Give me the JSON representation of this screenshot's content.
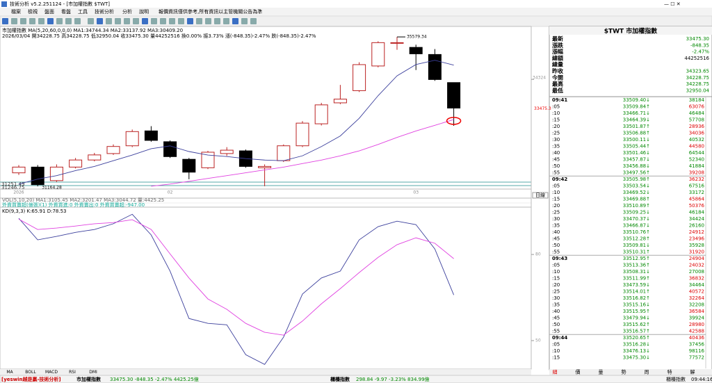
{
  "window": {
    "title": "技術分析 v5.2.251124 - [市加權指數 $TWT]",
    "menu": [
      "檔案",
      "檢視",
      "盤面",
      "看盤",
      "工具",
      "技術分析",
      "分析",
      "說明"
    ],
    "notice": "報價資訊僅供參考,所有資訊以主管機關公告為準"
  },
  "info": {
    "line1": "市加權指數 MA(5,20,60,0,0,0) MA1:34744.34 MA2:33137.92 MA3:30409.20",
    "line2": "2026/03/04 開34228.75 高34228.75 低32950.04 收33475.30 量44252516 換0.00% 振3.73% 漲(-848.35)-2.47% 跌(-848.35)-2.47%",
    "vol": "VOL(5,10,20) MA1:3105.45 MA2:3201.47 MA3:3044.72 量:4425.25",
    "foreign": "外資買賣超(億張)(1) 外資買進:0 外資賣出:0 外資買賣超:-947.00",
    "left_labels": [
      "31251.49",
      "31246.75"
    ],
    "period": "日線"
  },
  "chart_data": [
    {
      "type": "candlestick",
      "x": [
        "2026",
        null,
        null,
        null,
        null,
        null,
        null,
        null,
        "02",
        null,
        null,
        null,
        null,
        null,
        null,
        null,
        null,
        null,
        null,
        null,
        null,
        "03",
        null,
        null
      ],
      "open": [
        31560,
        31730,
        31330,
        31730,
        31940,
        32130,
        32360,
        32800,
        32480,
        31960,
        31710,
        32130,
        32210,
        31710,
        31920,
        32360,
        33010,
        33630,
        33990,
        34720,
        35390,
        35270,
        35060,
        34228.75
      ],
      "high": [
        31790,
        31790,
        31810,
        32000,
        32150,
        32400,
        32840,
        32940,
        32520,
        32000,
        32210,
        32320,
        32250,
        31810,
        32400,
        33090,
        33630,
        34160,
        34830,
        35450,
        35579.34,
        35350,
        35220,
        34228.75
      ],
      "low": [
        31500,
        31160,
        31290,
        31690,
        31900,
        32090,
        32320,
        32480,
        32000,
        31370,
        31670,
        32060,
        31710,
        31164.28,
        31880,
        32320,
        32960,
        33590,
        33950,
        34680,
        35200,
        34600,
        34280,
        32950.04
      ],
      "close": [
        31730,
        31210,
        31730,
        31940,
        32090,
        32340,
        32780,
        32520,
        32040,
        31580,
        32170,
        32230,
        31750,
        31750,
        32360,
        33030,
        33570,
        33740,
        34760,
        35410,
        35410,
        35080,
        34320,
        33475.3
      ],
      "series": [
        {
          "name": "MA1",
          "color": "#3b3f9c",
          "values": [
            31227,
            31374,
            31478,
            31625,
            31750,
            31918,
            32085,
            32273,
            32357,
            32190,
            32085,
            32043,
            31980,
            31938,
            31918,
            32064,
            32336,
            32650,
            33173,
            33842,
            34428,
            34763,
            34888,
            34744.34
          ]
        },
        {
          "name": "MA2",
          "color": "#e040e0",
          "values": [
            null,
            null,
            null,
            null,
            null,
            null,
            null,
            31164,
            31227,
            31311,
            31395,
            31478,
            31562,
            31646,
            31729,
            31834,
            31938,
            32064,
            32210,
            32399,
            32608,
            32797,
            32964,
            33137.92
          ]
        }
      ],
      "annotations": [
        "35579.34",
        "31164.28"
      ],
      "ylim": [
        31080,
        35890
      ],
      "yticks": [
        34324
      ],
      "last_label": "33475.3"
    },
    {
      "type": "line",
      "title": "KD(9,3,3) K:65.91 D:78.53",
      "ylim": [
        40.8,
        96
      ],
      "yticks": [
        50,
        80
      ],
      "series": [
        {
          "name": "K",
          "color": "#3b3f9c",
          "values": [
            92.6,
            85.1,
            86.3,
            87.7,
            88.7,
            90.7,
            94,
            86.8,
            74.2,
            57.7,
            56,
            55.5,
            45.1,
            41.7,
            51.2,
            66.2,
            71.8,
            74.2,
            85.1,
            89.7,
            91.6,
            90.4,
            81.9,
            65.91
          ]
        },
        {
          "name": "D",
          "color": "#e040e0",
          "values": [
            92.3,
            88.7,
            89.2,
            89.9,
            90.7,
            91.1,
            92.1,
            88.7,
            80.2,
            71.8,
            64.5,
            60.9,
            56,
            52.9,
            51.9,
            56.8,
            62.8,
            68.1,
            73.7,
            79,
            83.4,
            85.8,
            83.9,
            78.53
          ]
        }
      ]
    }
  ],
  "indicator_tabs": [
    "MA",
    "BOLL",
    "MACD",
    "RSI",
    "DMI"
  ],
  "quote": {
    "header": "$TWT 市加權指數",
    "rows": [
      [
        "最新",
        "33475.30"
      ],
      [
        "漲跌",
        "-848.35"
      ],
      [
        "漲幅",
        "-2.47%"
      ],
      [
        "總額",
        "44252516"
      ],
      [
        "總量",
        ""
      ],
      [
        "昨收",
        "34323.65"
      ],
      [
        "今開",
        "34228.75"
      ],
      [
        "最高",
        "34228.75"
      ],
      [
        "最低",
        "32950.04"
      ]
    ]
  },
  "ticks": [
    [
      "09:41",
      "33509.40↓",
      "38184"
    ],
    [
      ":05",
      "33509.84↑",
      "63076"
    ],
    [
      ":10",
      "33466.71↓",
      "46484"
    ],
    [
      ":15",
      "33464.39↓",
      "57708"
    ],
    [
      ":20",
      "33501.87↑",
      "28936"
    ],
    [
      ":25",
      "33506.88↑",
      "34036"
    ],
    [
      ":30",
      "33500.11↓",
      "40532"
    ],
    [
      ":35",
      "33505.44↑",
      "44580"
    ],
    [
      ":40",
      "33501.46↓",
      "64544"
    ],
    [
      ":45",
      "33457.87↓",
      "52340"
    ],
    [
      ":50",
      "33456.88↓",
      "41884"
    ],
    [
      ":55",
      "33497.56↑",
      "39208"
    ],
    [
      "09:42",
      "33505.98↑",
      "36232"
    ],
    [
      ":05",
      "33503.54↓",
      "67516"
    ],
    [
      ":10",
      "33469.52↓",
      "33172"
    ],
    [
      ":15",
      "33469.88↑",
      "45864"
    ],
    [
      ":20",
      "33510.89↑",
      "50376"
    ],
    [
      ":25",
      "33509.25↓",
      "46184"
    ],
    [
      ":30",
      "33470.37↓",
      "34424"
    ],
    [
      ":35",
      "33466.87↓",
      "26160"
    ],
    [
      ":40",
      "33510.76↑",
      "24912"
    ],
    [
      ":45",
      "33512.28↑",
      "23496"
    ],
    [
      ":50",
      "33509.81↓",
      "35928"
    ],
    [
      ":55",
      "33510.31↑",
      "31920"
    ],
    [
      "09:43",
      "33512.95↑",
      "24904"
    ],
    [
      ":05",
      "33513.36↑",
      "24032"
    ],
    [
      ":10",
      "33508.31↓",
      "27008"
    ],
    [
      ":15",
      "33511.99↑",
      "36832"
    ],
    [
      ":20",
      "33473.59↓",
      "34464"
    ],
    [
      ":25",
      "33514.01↑",
      "40572"
    ],
    [
      ":30",
      "33516.82↑",
      "32264"
    ],
    [
      ":35",
      "33515.16↓",
      "32208"
    ],
    [
      ":40",
      "33515.95↑",
      "36584"
    ],
    [
      ":45",
      "33479.94↓",
      "39924"
    ],
    [
      ":50",
      "33515.62↑",
      "28980"
    ],
    [
      ":55",
      "33516.57↑",
      "42588"
    ],
    [
      "09:44",
      "33520.65↑",
      "40436"
    ],
    [
      ":05",
      "33516.28↓",
      "37456"
    ],
    [
      ":10",
      "33476.13↓",
      "98116"
    ],
    [
      ":15",
      "33475.30↓",
      "77572"
    ]
  ],
  "tabs": [
    "細",
    "價",
    "量",
    "勢",
    "周",
    "特",
    "解"
  ],
  "status": {
    "brand": "[yeswin越是贏-技術分析]",
    "index1": "市加權指數",
    "quote1": "33475.30 -848.35 -2.47% 4425.25億",
    "index2": "櫃檯指數",
    "quote2": "298.84 -9.97 -3.23% 834.99億",
    "index3": "櫃檯指數",
    "time": "09:44:16"
  }
}
